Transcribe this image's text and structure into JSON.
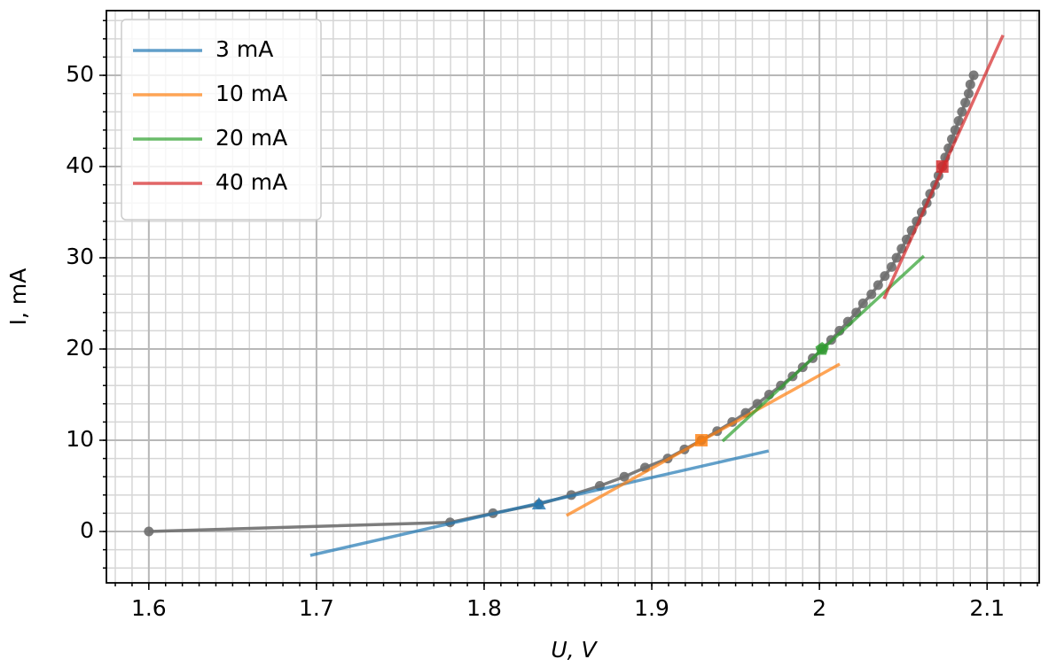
{
  "chart_data": {
    "type": "line",
    "xlabel": "U, V",
    "ylabel": "I, mA",
    "xlim": [
      1.5747,
      2.1311
    ],
    "ylim": [
      -5.63,
      57.09
    ],
    "xticks": [
      1.6,
      1.7,
      1.8,
      1.9,
      2.0,
      2.1
    ],
    "yticks": [
      0,
      10,
      20,
      30,
      40,
      50
    ],
    "grid": true,
    "minor_grid": {
      "x": 0.01,
      "y": 2
    },
    "legend": "upper left",
    "curve": {
      "color": "#6f6f6f",
      "x": [
        1.6,
        1.7797,
        1.8053,
        1.8327,
        1.852,
        1.869,
        1.8836,
        1.896,
        1.9095,
        1.9195,
        1.9296,
        1.939,
        1.948,
        1.956,
        1.963,
        1.97,
        1.977,
        1.984,
        1.99,
        1.996,
        2.0016,
        2.007,
        2.012,
        2.017,
        2.022,
        2.026,
        2.031,
        2.035,
        2.039,
        2.043,
        2.046,
        2.049,
        2.052,
        2.055,
        2.058,
        2.061,
        2.064,
        2.066,
        2.069,
        2.071,
        2.0733,
        2.075,
        2.077,
        2.079,
        2.081,
        2.083,
        2.085,
        2.087,
        2.089,
        2.09,
        2.092
      ],
      "values": [
        0,
        1,
        2,
        3,
        4,
        5,
        6,
        7,
        8,
        9,
        10,
        11,
        12,
        13,
        14,
        15,
        16,
        17,
        18,
        19,
        20,
        21,
        22,
        23,
        24,
        25,
        26,
        27,
        28,
        29,
        30,
        31,
        32,
        33,
        34,
        35,
        36,
        37,
        38,
        39,
        40,
        41,
        42,
        43,
        44,
        45,
        46,
        47,
        48,
        49,
        50
      ]
    },
    "series": [
      {
        "name": "3 mA",
        "color": "#1f77b4",
        "x": [
          1.6963,
          1.9697
        ],
        "values": [
          -2.62,
          8.83
        ],
        "marker": "triangle",
        "point_x": 1.8327,
        "point_y": 3
      },
      {
        "name": "10 mA",
        "color": "#ff7f0e",
        "x": [
          1.8491,
          2.0121
        ],
        "values": [
          1.75,
          18.35
        ],
        "marker": "square",
        "point_x": 1.9296,
        "point_y": 10
      },
      {
        "name": "20 mA",
        "color": "#2ca02c",
        "x": [
          1.9422,
          2.0623
        ],
        "values": [
          9.9,
          30.2
        ],
        "marker": "pentagon",
        "point_x": 2.0016,
        "point_y": 20
      },
      {
        "name": "40 mA",
        "color": "#d62728",
        "x": [
          2.0385,
          2.1095
        ],
        "values": [
          25.5,
          54.4
        ],
        "marker": "square",
        "point_x": 2.0733,
        "point_y": 40
      }
    ]
  }
}
